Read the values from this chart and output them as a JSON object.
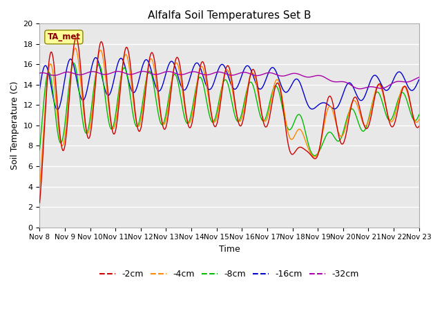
{
  "title": "Alfalfa Soil Temperatures Set B",
  "xlabel": "Time",
  "ylabel": "Soil Temperature (C)",
  "ylim": [
    0,
    20
  ],
  "yticks": [
    0,
    2,
    4,
    6,
    8,
    10,
    12,
    14,
    16,
    18,
    20
  ],
  "x_labels": [
    "Nov 8",
    "Nov 9",
    "Nov 10",
    "Nov 11",
    "Nov 12",
    "Nov 13",
    "Nov 14",
    "Nov 15",
    "Nov 16",
    "Nov 17",
    "Nov 18",
    "Nov 19",
    "Nov 20",
    "Nov 21",
    "Nov 22",
    "Nov 23"
  ],
  "colors": {
    "-2cm": "#cc0000",
    "-4cm": "#ff8800",
    "-8cm": "#00bb00",
    "-16cm": "#0000cc",
    "-32cm": "#aa00aa"
  },
  "annotation_text": "TA_met",
  "annotation_color": "#880000",
  "annotation_bg": "#ffff99",
  "bg_color": "#e8e8e8",
  "grid_color": "#ffffff"
}
